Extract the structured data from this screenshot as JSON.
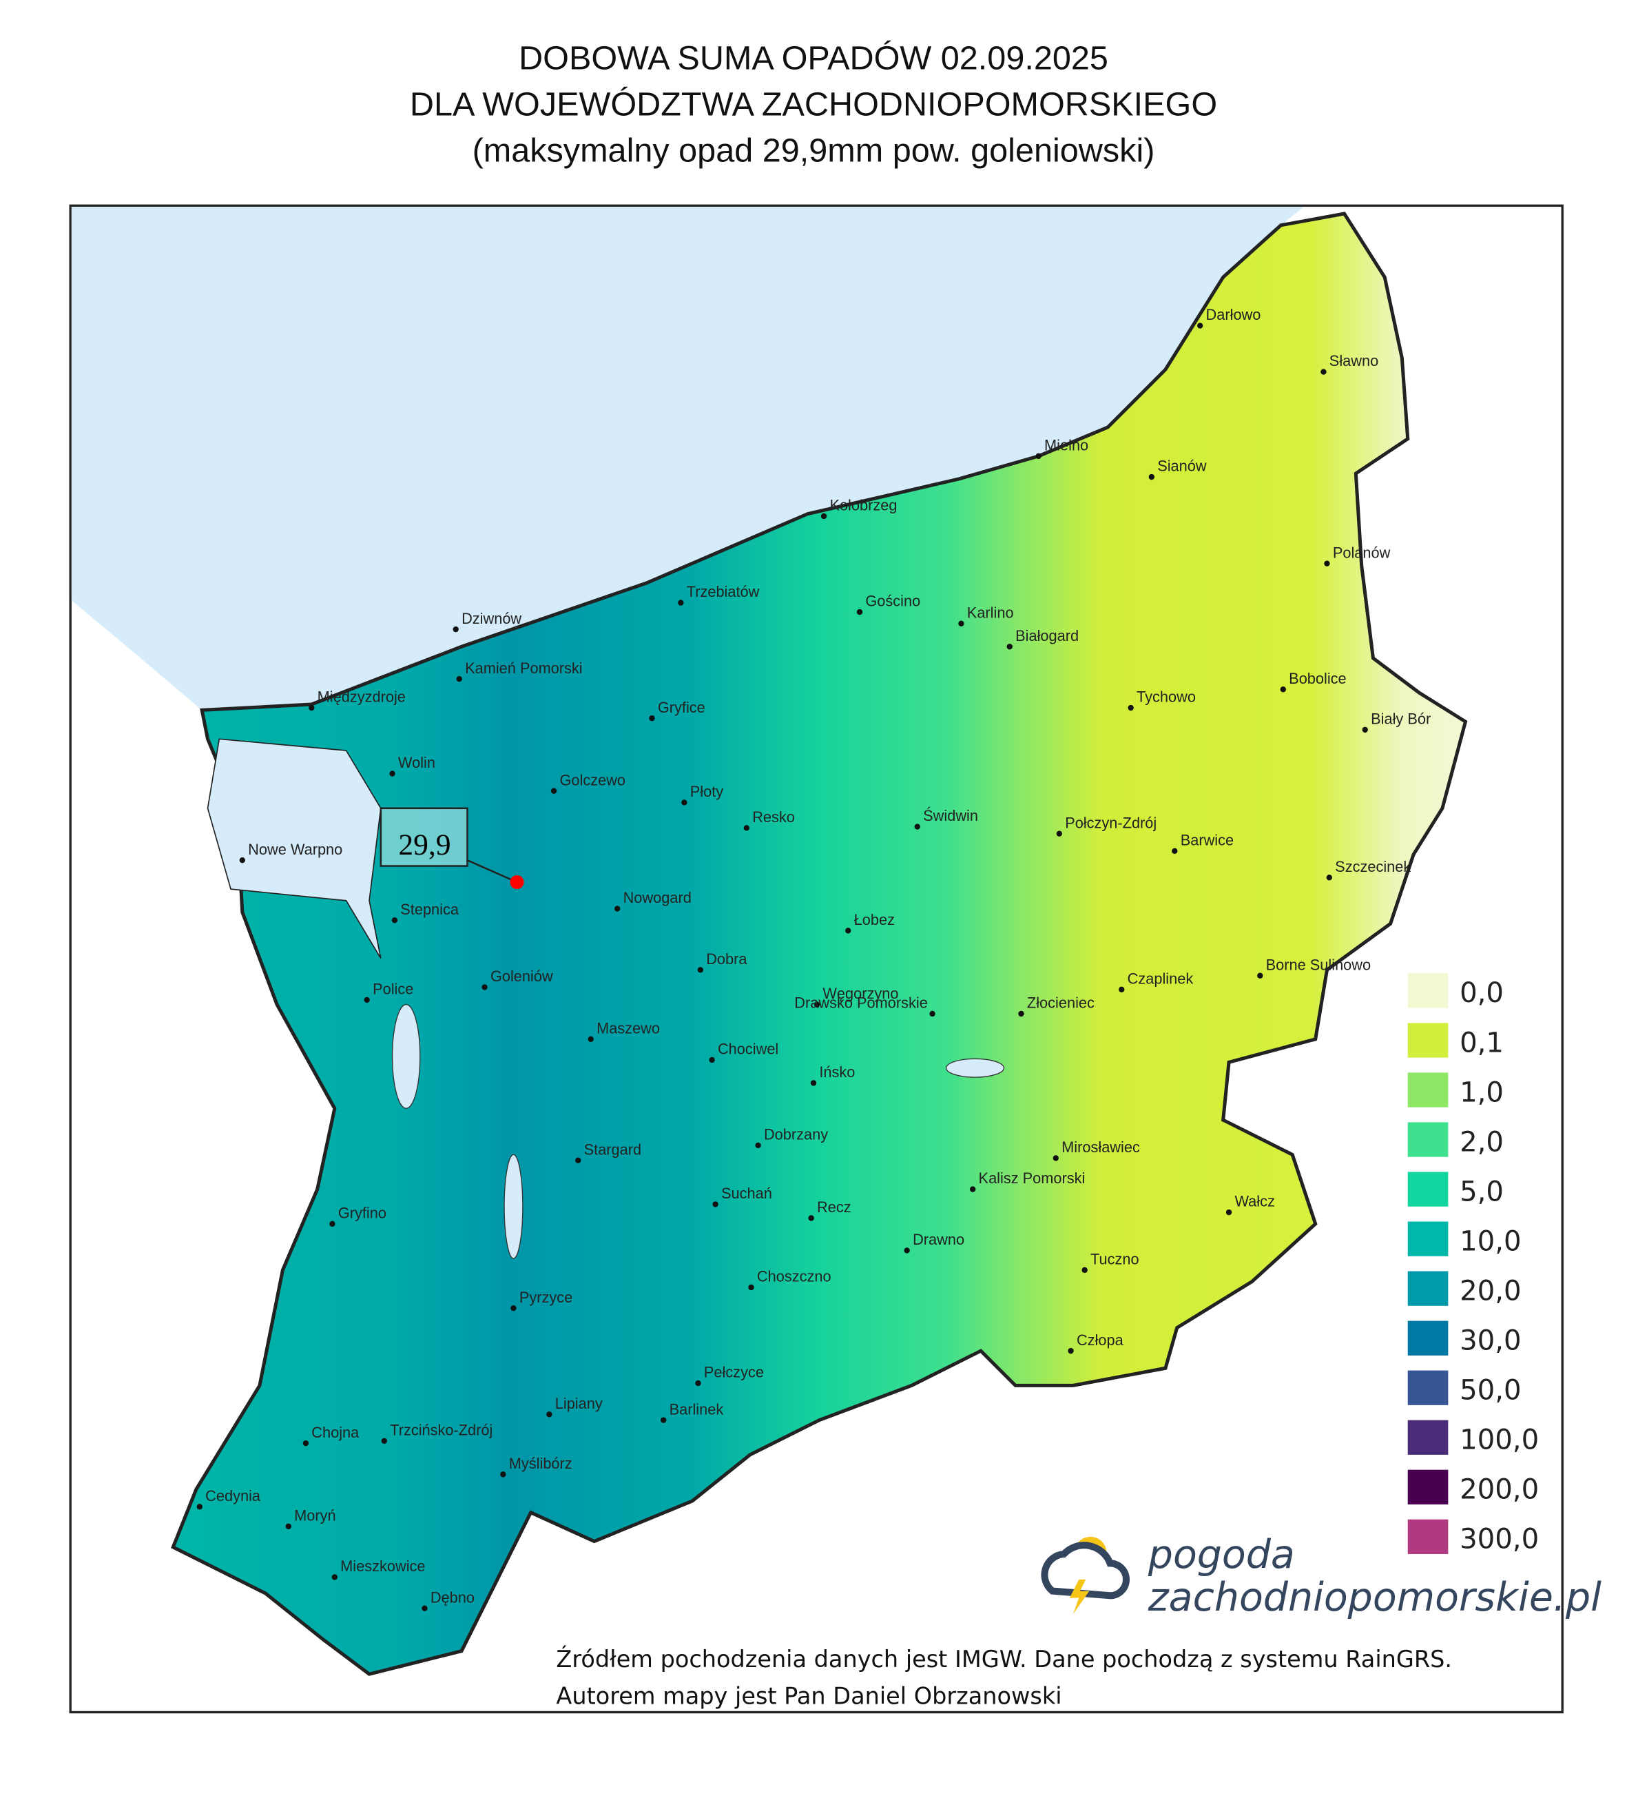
{
  "header": {
    "title_lines": [
      "DOBOWA SUMA OPADÓW 02.09.2025",
      "DLA WOJEWÓDZTWA ZACHODNIOPOMORSKIEGO",
      "(maksymalny opad 29,9mm pow. goleniowski)"
    ]
  },
  "map": {
    "annotation": {
      "label": "29,9"
    },
    "cities": [
      "Darłowo",
      "Sławno",
      "Mielno",
      "Sianów",
      "Kołobrzeg",
      "Polanów",
      "Trzebiatów",
      "Gościno",
      "Karlino",
      "Białogard",
      "Dziwnów",
      "Kamień Pomorski",
      "Bobolice",
      "Międzyzdroje",
      "Gryfice",
      "Tychowo",
      "Biały Bór",
      "Wolin",
      "Golczewo",
      "Płoty",
      "Resko",
      "Świdwin",
      "Połczyn-Zdrój",
      "Barwice",
      "Nowe Warpno",
      "Szczecinek",
      "Nowogard",
      "Stepnica",
      "Łobez",
      "Dobra",
      "Goleniów",
      "Police",
      "Borne Sulinowo",
      "Czaplinek",
      "Węgorzyno",
      "Złocieniec",
      "Drawsko Pomorskie",
      "Maszewo",
      "Chociwel",
      "Ińsko",
      "Dobrzany",
      "Mirosławiec",
      "Stargard",
      "Kalisz Pomorski",
      "Suchań",
      "Recz",
      "Gryfino",
      "Wałcz",
      "Drawno",
      "Tuczno",
      "Choszczno",
      "Pyrzyce",
      "Człopa",
      "Pełczyce",
      "Lipiany",
      "Barlinek",
      "Chojna",
      "Trzcińsko-Zdrój",
      "Myślibórz",
      "Cedynia",
      "Moryń",
      "Mieszkowice",
      "Dębno"
    ]
  },
  "legend": {
    "items": [
      {
        "label": "0,0",
        "color": "#f1f9d2"
      },
      {
        "label": "0,1",
        "color": "#d3ee3a"
      },
      {
        "label": "1,0",
        "color": "#8ee865"
      },
      {
        "label": "2,0",
        "color": "#3fe08d"
      },
      {
        "label": "5,0",
        "color": "#12d6a0"
      },
      {
        "label": "10,0",
        "color": "#00b8aa"
      },
      {
        "label": "20,0",
        "color": "#009aab"
      },
      {
        "label": "30,0",
        "color": "#0079a5"
      },
      {
        "label": "50,0",
        "color": "#375494"
      },
      {
        "label": "100,0",
        "color": "#4b2c78"
      },
      {
        "label": "200,0",
        "color": "#4a0050"
      },
      {
        "label": "300,0",
        "color": "#b03a80"
      }
    ]
  },
  "logo": {
    "lines": [
      "pogoda",
      "zachodniopomorskie.pl"
    ]
  },
  "footer": {
    "lines": [
      "Źródłem pochodzenia danych jest IMGW. Dane pochodzą z systemu RainGRS.",
      "Autorem mapy jest Pan Daniel Obrzanowski"
    ]
  }
}
